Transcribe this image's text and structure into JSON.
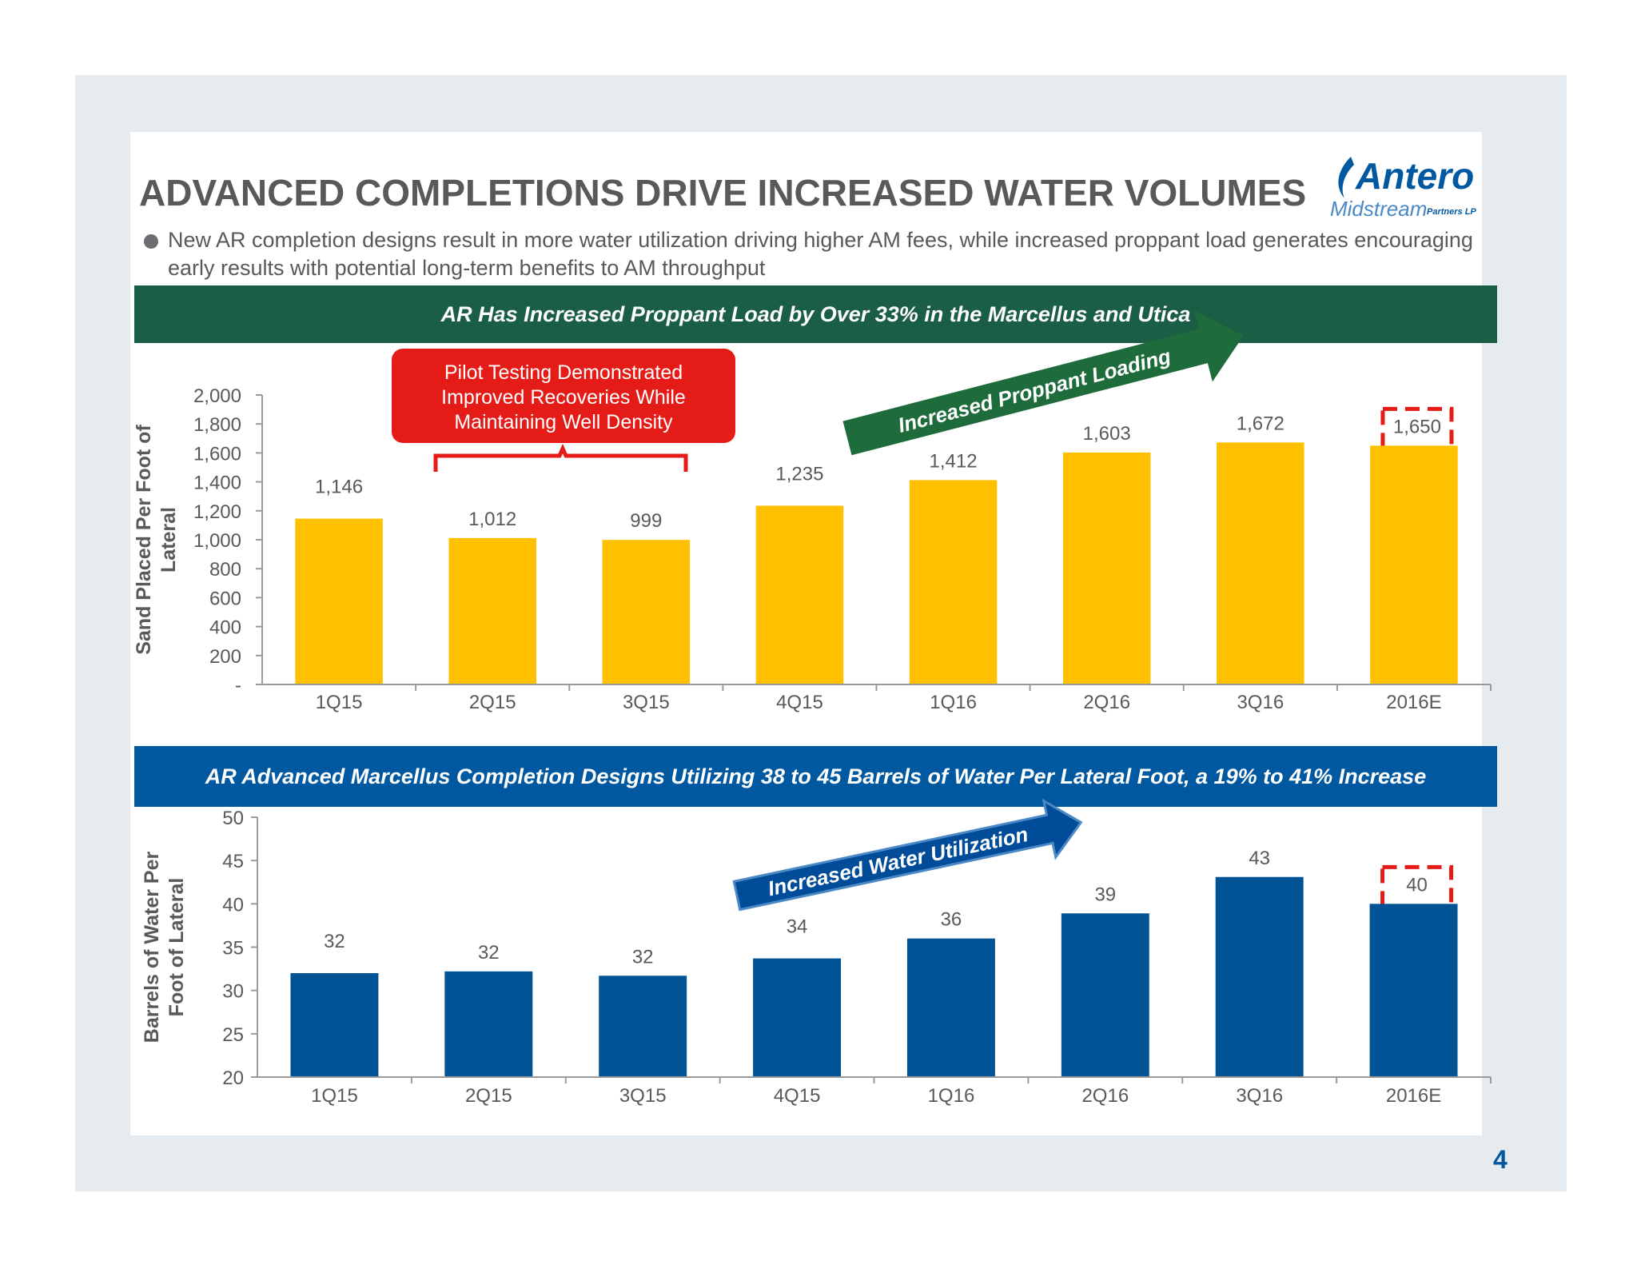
{
  "title": "ADVANCED COMPLETIONS DRIVE INCREASED WATER VOLUMES",
  "logo": {
    "name": "Antero",
    "sub": "Midstream",
    "sub2": "Partners LP"
  },
  "bullet": "New AR completion designs result in more water utilization driving higher AM fees, while increased proppant load generates encouraging early results with potential long-term benefits to AM throughput",
  "banner1": "AR Has Increased Proppant Load by Over 33% in the Marcellus and Utica",
  "banner2": "AR Advanced Marcellus Completion Designs Utilizing 38 to 45 Barrels of Water Per Lateral Foot, a 19% to 41% Increase",
  "page_number": "4",
  "annotations": {
    "pilot_lines": [
      "Pilot Testing Demonstrated",
      "Improved Recoveries While",
      "Maintaining Well Density"
    ],
    "arrow1": "Increased Proppant Loading",
    "arrow2": "Increased  Water Utilization"
  },
  "colors": {
    "bar1": "#ffc000",
    "bar2": "#005496",
    "callout": "#e41b17",
    "arrow1": "#1e6b3c",
    "arrow2": "#004c99",
    "dashed_box": "#e41b17",
    "axis": "#9a9a9a",
    "text": "#58595b"
  },
  "chart_data": [
    {
      "type": "bar",
      "categories": [
        "1Q15",
        "2Q15",
        "3Q15",
        "4Q15",
        "1Q16",
        "2Q16",
        "3Q16",
        "2016E"
      ],
      "values": [
        1146,
        1012,
        999,
        1235,
        1412,
        1603,
        1672,
        1650
      ],
      "labels": [
        "1,146",
        "1,012",
        "999",
        "1,235",
        "1,412",
        "1,603",
        "1,672",
        "1,650"
      ],
      "ylabel_lines": [
        "Sand Placed Per Foot of",
        "Lateral"
      ],
      "ylim": [
        0,
        2000
      ],
      "yticks": [
        "-",
        "200",
        "400",
        "600",
        "800",
        "1,000",
        "1,200",
        "1,400",
        "1,600",
        "1,800",
        "2,000"
      ],
      "highlighted": "2016E",
      "grid": false
    },
    {
      "type": "bar",
      "categories": [
        "1Q15",
        "2Q15",
        "3Q15",
        "4Q15",
        "1Q16",
        "2Q16",
        "3Q16",
        "2016E"
      ],
      "values": [
        32,
        32.2,
        31.7,
        33.7,
        36,
        38.9,
        43.1,
        40
      ],
      "labels": [
        "32",
        "32",
        "32",
        "34",
        "36",
        "39",
        "43",
        "40"
      ],
      "ylabel_lines": [
        "Barrels of Water Per",
        "Foot of Lateral"
      ],
      "ylim": [
        20,
        50
      ],
      "yticks": [
        "20",
        "25",
        "30",
        "35",
        "40",
        "45",
        "50"
      ],
      "highlighted": "2016E",
      "grid": false
    }
  ]
}
